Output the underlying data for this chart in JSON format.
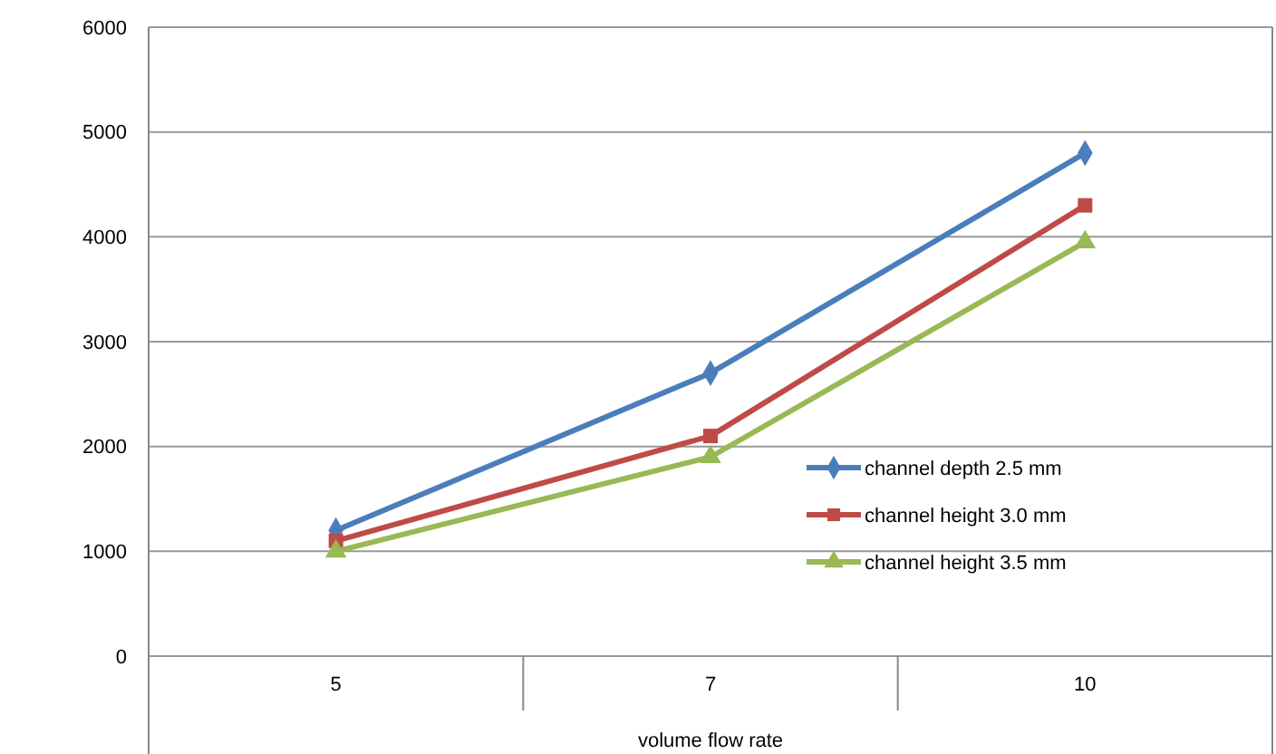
{
  "chart_data": {
    "type": "line",
    "xlabel": "volume flow rate",
    "categories": [
      "5",
      "7",
      "10"
    ],
    "series": [
      {
        "name": "channel depth 2.5 mm",
        "color": "#4a7ebb",
        "values": [
          1200,
          2700,
          4800
        ],
        "marker": "diamond"
      },
      {
        "name": "channel height 3.0 mm",
        "color": "#be4b48",
        "values": [
          1100,
          2100,
          4300
        ],
        "marker": "square"
      },
      {
        "name": "channel height 3.5 mm",
        "color": "#98b954",
        "values": [
          1000,
          1900,
          3950
        ],
        "marker": "triangle"
      }
    ],
    "ylim": [
      0,
      6000
    ],
    "yticks": [
      0,
      1000,
      2000,
      3000,
      4000,
      5000,
      6000
    ],
    "grid": "y",
    "legend": "right",
    "line_style": "solid"
  }
}
